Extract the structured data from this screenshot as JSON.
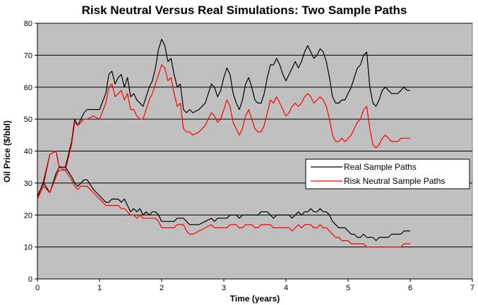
{
  "chart_data": {
    "type": "line",
    "title": "Risk Neutral Versus Real Simulations: Two Sample Paths",
    "xlabel": "Time (years)",
    "ylabel": "Oil Price ($/bbl)",
    "xlim": [
      0,
      7
    ],
    "ylim": [
      0,
      80
    ],
    "x_ticks": [
      0,
      1,
      2,
      3,
      4,
      5,
      6,
      7
    ],
    "y_ticks": [
      0,
      10,
      20,
      30,
      40,
      50,
      60,
      70,
      80
    ],
    "grid": "horizontal",
    "legend_position": "center-right",
    "legend": [
      "Real Sample Paths",
      "Risk Neutral Sample Paths"
    ],
    "colors": {
      "plot_background": "#c0c0c0",
      "real": "#000000",
      "risk_neutral": "#ff0000"
    },
    "series": [
      {
        "group": "Real Sample Paths",
        "x": [
          0,
          0.1,
          0.2,
          0.3,
          0.35,
          0.45,
          0.55,
          0.6,
          0.65,
          0.7,
          0.75,
          0.8,
          0.9,
          1.0,
          1.1,
          1.15,
          1.2,
          1.25,
          1.3,
          1.35,
          1.4,
          1.45,
          1.5,
          1.55,
          1.6,
          1.65,
          1.7,
          1.75,
          1.8,
          1.85,
          1.9,
          1.95,
          2.0,
          2.05,
          2.1,
          2.15,
          2.2,
          2.25,
          2.3,
          2.35,
          2.4,
          2.45,
          2.5,
          2.6,
          2.7,
          2.8,
          2.85,
          2.9,
          2.95,
          3.0,
          3.05,
          3.1,
          3.15,
          3.2,
          3.25,
          3.3,
          3.35,
          3.4,
          3.45,
          3.5,
          3.55,
          3.6,
          3.65,
          3.7,
          3.75,
          3.8,
          3.85,
          3.9,
          3.95,
          4.0,
          4.05,
          4.1,
          4.15,
          4.2,
          4.25,
          4.3,
          4.35,
          4.4,
          4.45,
          4.5,
          4.55,
          4.6,
          4.65,
          4.7,
          4.75,
          4.8,
          4.85,
          4.9,
          4.95,
          5.0,
          5.05,
          5.1,
          5.15,
          5.2,
          5.25,
          5.3,
          5.35,
          5.4,
          5.45,
          5.5,
          5.55,
          5.6,
          5.65,
          5.7,
          5.75,
          5.8,
          5.85,
          5.9,
          5.95,
          6.0
        ],
        "y": [
          26,
          30,
          39,
          40,
          35,
          35,
          43,
          50,
          48,
          50,
          52,
          53,
          53,
          53,
          58,
          64,
          65,
          61,
          63,
          64,
          60,
          63,
          57,
          58,
          56,
          55,
          54,
          57,
          60,
          62,
          66,
          72,
          75,
          73,
          68,
          69,
          64,
          60,
          61,
          53,
          52,
          53,
          52,
          53,
          55,
          61,
          60,
          57,
          59,
          63,
          66,
          64,
          58,
          55,
          53,
          56,
          61,
          63,
          60,
          56,
          55,
          55,
          58,
          63,
          67,
          67,
          69,
          67,
          64,
          62,
          64,
          66,
          68,
          66,
          68,
          71,
          73,
          71,
          69,
          70,
          72,
          71,
          68,
          63,
          57,
          55,
          55,
          56,
          56,
          58,
          60,
          63,
          66,
          67,
          70,
          71,
          60,
          55,
          54,
          56,
          59,
          60,
          59,
          58,
          58,
          58,
          59,
          60,
          59,
          59
        ],
        "color": "#000000"
      },
      {
        "group": "Risk Neutral Sample Paths",
        "x": [
          0,
          0.1,
          0.2,
          0.3,
          0.35,
          0.45,
          0.55,
          0.6,
          0.65,
          0.7,
          0.75,
          0.8,
          0.9,
          1.0,
          1.1,
          1.15,
          1.2,
          1.25,
          1.3,
          1.35,
          1.4,
          1.45,
          1.5,
          1.55,
          1.6,
          1.65,
          1.7,
          1.75,
          1.8,
          1.85,
          1.9,
          1.95,
          2.0,
          2.05,
          2.1,
          2.15,
          2.2,
          2.25,
          2.3,
          2.35,
          2.4,
          2.45,
          2.5,
          2.6,
          2.7,
          2.8,
          2.85,
          2.9,
          2.95,
          3.0,
          3.05,
          3.1,
          3.15,
          3.2,
          3.25,
          3.3,
          3.35,
          3.4,
          3.45,
          3.5,
          3.55,
          3.6,
          3.65,
          3.7,
          3.75,
          3.8,
          3.85,
          3.9,
          3.95,
          4.0,
          4.05,
          4.1,
          4.15,
          4.2,
          4.25,
          4.3,
          4.35,
          4.4,
          4.45,
          4.5,
          4.55,
          4.6,
          4.65,
          4.7,
          4.75,
          4.8,
          4.85,
          4.9,
          4.95,
          5.0,
          5.05,
          5.1,
          5.15,
          5.2,
          5.25,
          5.3,
          5.35,
          5.4,
          5.45,
          5.5,
          5.55,
          5.6,
          5.65,
          5.7,
          5.75,
          5.8,
          5.85,
          5.9,
          5.95,
          6.0
        ],
        "y": [
          25,
          31,
          39,
          40,
          35,
          34,
          42,
          49,
          48,
          49,
          50,
          50,
          51,
          50,
          55,
          60,
          61,
          57,
          58,
          59,
          56,
          58,
          53,
          53,
          51,
          50,
          50,
          53,
          56,
          58,
          61,
          64,
          67,
          66,
          62,
          63,
          58,
          54,
          55,
          47,
          46,
          46,
          45,
          46,
          48,
          52,
          51,
          49,
          50,
          53,
          56,
          54,
          49,
          47,
          45,
          47,
          51,
          53,
          50,
          47,
          46,
          46,
          48,
          52,
          56,
          55,
          57,
          55,
          53,
          51,
          52,
          54,
          55,
          54,
          55,
          57,
          58,
          57,
          55,
          56,
          57,
          56,
          54,
          50,
          45,
          43,
          43,
          44,
          43,
          44,
          45,
          47,
          49,
          50,
          53,
          54,
          47,
          42,
          41,
          42,
          44,
          45,
          44,
          43,
          43,
          43,
          44,
          44,
          44,
          44
        ],
        "color": "#ff0000"
      },
      {
        "group": "Real Sample Paths",
        "x": [
          0,
          0.1,
          0.2,
          0.3,
          0.35,
          0.45,
          0.55,
          0.6,
          0.65,
          0.7,
          0.75,
          0.8,
          0.9,
          1.0,
          1.1,
          1.15,
          1.2,
          1.25,
          1.3,
          1.35,
          1.4,
          1.45,
          1.5,
          1.55,
          1.6,
          1.65,
          1.7,
          1.75,
          1.8,
          1.85,
          1.9,
          1.95,
          2.0,
          2.05,
          2.1,
          2.15,
          2.2,
          2.25,
          2.3,
          2.35,
          2.4,
          2.45,
          2.5,
          2.6,
          2.7,
          2.8,
          2.85,
          2.9,
          2.95,
          3.0,
          3.05,
          3.1,
          3.15,
          3.2,
          3.25,
          3.3,
          3.35,
          3.4,
          3.45,
          3.5,
          3.55,
          3.6,
          3.65,
          3.7,
          3.75,
          3.8,
          3.85,
          3.9,
          3.95,
          4.0,
          4.05,
          4.1,
          4.15,
          4.2,
          4.25,
          4.3,
          4.35,
          4.4,
          4.45,
          4.5,
          4.55,
          4.6,
          4.65,
          4.7,
          4.75,
          4.8,
          4.85,
          4.9,
          4.95,
          5.0,
          5.05,
          5.1,
          5.15,
          5.2,
          5.25,
          5.3,
          5.35,
          5.4,
          5.45,
          5.5,
          5.55,
          5.6,
          5.65,
          5.7,
          5.75,
          5.8,
          5.85,
          5.9,
          5.95,
          6.0
        ],
        "y": [
          26,
          30,
          27,
          33,
          35,
          35,
          32,
          30,
          29,
          30,
          31,
          31,
          28,
          26,
          24,
          24,
          25,
          25,
          25,
          24,
          25,
          23,
          21,
          22,
          21,
          22,
          20,
          21,
          20,
          21,
          21,
          20,
          18,
          18,
          18,
          18,
          18,
          19,
          19,
          19,
          18,
          17,
          17,
          17,
          18,
          19,
          18,
          19,
          19,
          19,
          19,
          20,
          20,
          20,
          19,
          20,
          20,
          20,
          20,
          20,
          20,
          21,
          21,
          21,
          20,
          19,
          20,
          20,
          20,
          20,
          20,
          19,
          20,
          21,
          20,
          21,
          21,
          22,
          21,
          21,
          22,
          21,
          21,
          20,
          18,
          17,
          16,
          16,
          16,
          15,
          14,
          14,
          13,
          13,
          14,
          13,
          13,
          13,
          12,
          13,
          13,
          13,
          13,
          14,
          14,
          14,
          14,
          15,
          15,
          15
        ],
        "color": "#000000"
      },
      {
        "group": "Risk Neutral Sample Paths",
        "x": [
          0,
          0.1,
          0.2,
          0.3,
          0.35,
          0.45,
          0.55,
          0.6,
          0.65,
          0.7,
          0.75,
          0.8,
          0.9,
          1.0,
          1.1,
          1.15,
          1.2,
          1.25,
          1.3,
          1.35,
          1.4,
          1.45,
          1.5,
          1.55,
          1.6,
          1.65,
          1.7,
          1.75,
          1.8,
          1.85,
          1.9,
          1.95,
          2.0,
          2.05,
          2.1,
          2.15,
          2.2,
          2.25,
          2.3,
          2.35,
          2.4,
          2.45,
          2.5,
          2.6,
          2.7,
          2.8,
          2.85,
          2.9,
          2.95,
          3.0,
          3.05,
          3.1,
          3.15,
          3.2,
          3.25,
          3.3,
          3.35,
          3.4,
          3.45,
          3.5,
          3.55,
          3.6,
          3.65,
          3.7,
          3.75,
          3.8,
          3.85,
          3.9,
          3.95,
          4.0,
          4.05,
          4.1,
          4.15,
          4.2,
          4.25,
          4.3,
          4.35,
          4.4,
          4.45,
          4.5,
          4.55,
          4.6,
          4.65,
          4.7,
          4.75,
          4.8,
          4.85,
          4.9,
          4.95,
          5.0,
          5.05,
          5.1,
          5.15,
          5.2,
          5.25,
          5.3,
          5.35,
          5.4,
          5.45,
          5.5,
          5.55,
          5.6,
          5.65,
          5.7,
          5.75,
          5.8,
          5.85,
          5.9,
          5.95,
          6.0
        ],
        "y": [
          25,
          29,
          27,
          32,
          34,
          34,
          31,
          29,
          28,
          29,
          29,
          29,
          27,
          25,
          23,
          23,
          23,
          23,
          23,
          22,
          22,
          21,
          20,
          20,
          19,
          20,
          19,
          19,
          19,
          19,
          19,
          18,
          16,
          16,
          16,
          16,
          16,
          17,
          17,
          17,
          15,
          14,
          14,
          15,
          16,
          17,
          16,
          16,
          16,
          16,
          16,
          17,
          17,
          17,
          16,
          16,
          17,
          17,
          17,
          16,
          16,
          17,
          17,
          17,
          17,
          16,
          16,
          16,
          16,
          16,
          16,
          15,
          16,
          17,
          16,
          17,
          17,
          17,
          16,
          16,
          17,
          16,
          16,
          15,
          14,
          13,
          13,
          12,
          12,
          12,
          11,
          11,
          11,
          11,
          11,
          10,
          10,
          10,
          10,
          10,
          10,
          10,
          10,
          10,
          10,
          10,
          10,
          11,
          11,
          11
        ],
        "color": "#ff0000"
      }
    ]
  }
}
